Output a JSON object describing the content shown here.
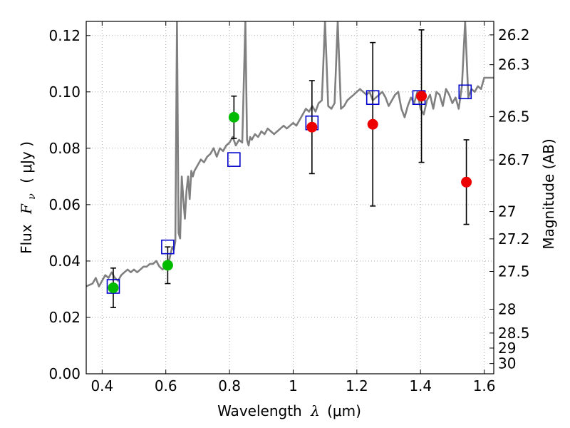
{
  "chart_data": {
    "type": "scatter",
    "xlabel_prefix": "Wavelength",
    "xlabel_symbol": "λ",
    "xlabel_unit": "(μm)",
    "ylabel_prefix": "Flux",
    "ylabel_symbol": "F",
    "ylabel_subscript": "ν",
    "ylabel_unit": "( μJy )",
    "y2label": "Magnitude (AB)",
    "xlim": [
      0.35,
      1.63
    ],
    "ylim": [
      0.0,
      0.125
    ],
    "grid": true,
    "x_ticks": [
      0.4,
      0.6,
      0.8,
      1.0,
      1.2,
      1.4,
      1.6
    ],
    "x_tick_labels": [
      "0.4",
      "0.6",
      "0.8",
      "1",
      "1.2",
      "1.4",
      "1.6"
    ],
    "y_ticks": [
      0.0,
      0.02,
      0.04,
      0.06,
      0.08,
      0.1,
      0.12
    ],
    "y_tick_labels": [
      "0.00",
      "0.02",
      "0.04",
      "0.06",
      "0.08",
      "0.10",
      "0.12"
    ],
    "y2_ticks": [
      26.2,
      26.3,
      26.5,
      26.7,
      27,
      27.2,
      27.5,
      28,
      28.5,
      29,
      30
    ],
    "y2_tick_labels": [
      "26.2",
      "26.3",
      "26.5",
      "26.7",
      "27",
      "27.2",
      "27.5",
      "28",
      "28.5",
      "29",
      "30"
    ],
    "colors": {
      "model": "#808080",
      "model_photometry": "#0000cc",
      "optical_points": "#00bb00",
      "nir_points": "#ee0000",
      "errorbar": "#000000",
      "grid": "#999999"
    },
    "series": [
      {
        "kind": "model_spectrum",
        "x": [
          0.35,
          0.37,
          0.38,
          0.39,
          0.4,
          0.41,
          0.42,
          0.43,
          0.44,
          0.45,
          0.46,
          0.47,
          0.48,
          0.49,
          0.5,
          0.51,
          0.52,
          0.53,
          0.54,
          0.55,
          0.56,
          0.57,
          0.58,
          0.59,
          0.6,
          0.61,
          0.62,
          0.625,
          0.63,
          0.635,
          0.64,
          0.645,
          0.65,
          0.655,
          0.66,
          0.665,
          0.67,
          0.675,
          0.68,
          0.685,
          0.69,
          0.7,
          0.71,
          0.72,
          0.73,
          0.74,
          0.75,
          0.76,
          0.77,
          0.78,
          0.79,
          0.8,
          0.81,
          0.82,
          0.83,
          0.84,
          0.85,
          0.855,
          0.86,
          0.865,
          0.87,
          0.88,
          0.89,
          0.9,
          0.91,
          0.92,
          0.93,
          0.94,
          0.95,
          0.96,
          0.97,
          0.98,
          0.99,
          1.0,
          1.01,
          1.02,
          1.03,
          1.04,
          1.05,
          1.06,
          1.07,
          1.08,
          1.09,
          1.1,
          1.11,
          1.12,
          1.13,
          1.14,
          1.15,
          1.16,
          1.17,
          1.18,
          1.19,
          1.2,
          1.21,
          1.22,
          1.23,
          1.24,
          1.25,
          1.26,
          1.27,
          1.28,
          1.29,
          1.3,
          1.31,
          1.32,
          1.33,
          1.34,
          1.35,
          1.36,
          1.37,
          1.38,
          1.39,
          1.4,
          1.41,
          1.42,
          1.43,
          1.44,
          1.45,
          1.46,
          1.47,
          1.48,
          1.49,
          1.5,
          1.51,
          1.52,
          1.53,
          1.54,
          1.55,
          1.56,
          1.57,
          1.58,
          1.59,
          1.6,
          1.61,
          1.62,
          1.63
        ],
        "y": [
          0.031,
          0.032,
          0.034,
          0.031,
          0.033,
          0.035,
          0.034,
          0.036,
          0.034,
          0.033,
          0.035,
          0.036,
          0.037,
          0.036,
          0.037,
          0.036,
          0.037,
          0.038,
          0.038,
          0.039,
          0.039,
          0.04,
          0.038,
          0.037,
          0.038,
          0.04,
          0.045,
          0.044,
          0.047,
          0.125,
          0.05,
          0.048,
          0.07,
          0.062,
          0.055,
          0.065,
          0.07,
          0.062,
          0.072,
          0.07,
          0.072,
          0.074,
          0.076,
          0.075,
          0.077,
          0.078,
          0.08,
          0.077,
          0.08,
          0.079,
          0.081,
          0.082,
          0.084,
          0.081,
          0.083,
          0.082,
          0.125,
          0.083,
          0.081,
          0.084,
          0.083,
          0.085,
          0.084,
          0.086,
          0.085,
          0.087,
          0.086,
          0.085,
          0.086,
          0.087,
          0.088,
          0.087,
          0.088,
          0.089,
          0.088,
          0.09,
          0.092,
          0.094,
          0.093,
          0.095,
          0.093,
          0.096,
          0.097,
          0.125,
          0.095,
          0.094,
          0.096,
          0.125,
          0.094,
          0.095,
          0.097,
          0.098,
          0.099,
          0.1,
          0.101,
          0.1,
          0.099,
          0.1,
          0.097,
          0.098,
          0.099,
          0.1,
          0.098,
          0.095,
          0.097,
          0.099,
          0.1,
          0.094,
          0.091,
          0.095,
          0.098,
          0.096,
          0.1,
          0.094,
          0.092,
          0.097,
          0.099,
          0.094,
          0.1,
          0.099,
          0.095,
          0.101,
          0.099,
          0.096,
          0.098,
          0.094,
          0.102,
          0.125,
          0.098,
          0.101,
          0.1,
          0.102,
          0.101,
          0.105,
          0.105,
          0.105,
          0.105
        ]
      },
      {
        "kind": "model_photometry",
        "marker": "open-square",
        "x": [
          0.435,
          0.606,
          0.814,
          1.059,
          1.25,
          1.395,
          1.54
        ],
        "y": [
          0.031,
          0.045,
          0.076,
          0.089,
          0.098,
          0.098,
          0.1
        ]
      },
      {
        "kind": "observed_optical",
        "marker": "filled-circle",
        "x": [
          0.435,
          0.606,
          0.814
        ],
        "y": [
          0.0305,
          0.0385,
          0.091
        ],
        "yerr": [
          0.007,
          0.0065,
          0.0075
        ]
      },
      {
        "kind": "observed_nir",
        "marker": "filled-circle",
        "x": [
          1.059,
          1.25,
          1.403,
          1.544
        ],
        "y": [
          0.0875,
          0.0885,
          0.0985,
          0.068
        ],
        "yerr": [
          0.0165,
          0.029,
          0.0235,
          0.015
        ]
      }
    ]
  }
}
